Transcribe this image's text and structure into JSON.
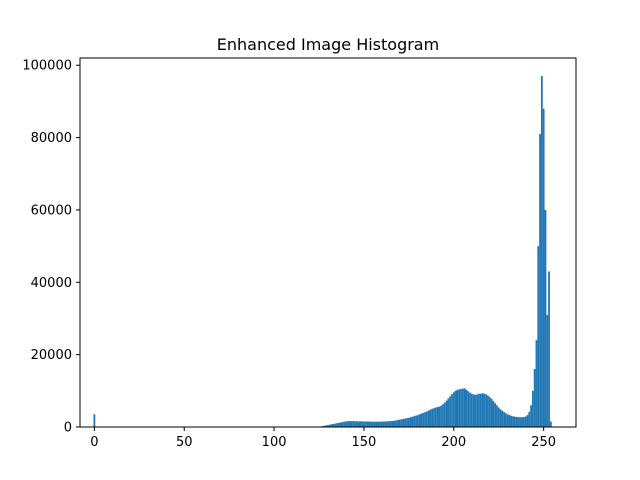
{
  "chart_data": {
    "type": "bar",
    "title": "Enhanced Image Histogram",
    "xlabel": "",
    "ylabel": "",
    "xlim": [
      -8,
      268
    ],
    "ylim": [
      0,
      102000
    ],
    "x_ticks": [
      0,
      50,
      100,
      150,
      200,
      250
    ],
    "y_ticks": [
      0,
      20000,
      40000,
      60000,
      80000,
      100000
    ],
    "grid": false,
    "legend": "none",
    "bar_color": "#1f77b4",
    "bins": [
      {
        "x": 0,
        "value": 3500
      },
      {
        "x": 126,
        "value": 150
      },
      {
        "x": 127,
        "value": 250
      },
      {
        "x": 128,
        "value": 350
      },
      {
        "x": 129,
        "value": 450
      },
      {
        "x": 130,
        "value": 550
      },
      {
        "x": 131,
        "value": 650
      },
      {
        "x": 132,
        "value": 750
      },
      {
        "x": 133,
        "value": 850
      },
      {
        "x": 134,
        "value": 950
      },
      {
        "x": 135,
        "value": 1050
      },
      {
        "x": 136,
        "value": 1150
      },
      {
        "x": 137,
        "value": 1250
      },
      {
        "x": 138,
        "value": 1350
      },
      {
        "x": 139,
        "value": 1450
      },
      {
        "x": 140,
        "value": 1550
      },
      {
        "x": 141,
        "value": 1600
      },
      {
        "x": 142,
        "value": 1650
      },
      {
        "x": 143,
        "value": 1600
      },
      {
        "x": 144,
        "value": 1650
      },
      {
        "x": 145,
        "value": 1600
      },
      {
        "x": 146,
        "value": 1600
      },
      {
        "x": 147,
        "value": 1550
      },
      {
        "x": 148,
        "value": 1600
      },
      {
        "x": 149,
        "value": 1550
      },
      {
        "x": 150,
        "value": 1550
      },
      {
        "x": 151,
        "value": 1500
      },
      {
        "x": 152,
        "value": 1550
      },
      {
        "x": 153,
        "value": 1500
      },
      {
        "x": 154,
        "value": 1500
      },
      {
        "x": 155,
        "value": 1450
      },
      {
        "x": 156,
        "value": 1500
      },
      {
        "x": 157,
        "value": 1450
      },
      {
        "x": 158,
        "value": 1500
      },
      {
        "x": 159,
        "value": 1450
      },
      {
        "x": 160,
        "value": 1500
      },
      {
        "x": 161,
        "value": 1500
      },
      {
        "x": 162,
        "value": 1550
      },
      {
        "x": 163,
        "value": 1550
      },
      {
        "x": 164,
        "value": 1600
      },
      {
        "x": 165,
        "value": 1650
      },
      {
        "x": 166,
        "value": 1700
      },
      {
        "x": 167,
        "value": 1750
      },
      {
        "x": 168,
        "value": 1850
      },
      {
        "x": 169,
        "value": 1950
      },
      {
        "x": 170,
        "value": 2050
      },
      {
        "x": 171,
        "value": 2150
      },
      {
        "x": 172,
        "value": 2250
      },
      {
        "x": 173,
        "value": 2350
      },
      {
        "x": 174,
        "value": 2450
      },
      {
        "x": 175,
        "value": 2550
      },
      {
        "x": 176,
        "value": 2700
      },
      {
        "x": 177,
        "value": 2850
      },
      {
        "x": 178,
        "value": 3000
      },
      {
        "x": 179,
        "value": 3150
      },
      {
        "x": 180,
        "value": 3300
      },
      {
        "x": 181,
        "value": 3500
      },
      {
        "x": 182,
        "value": 3700
      },
      {
        "x": 183,
        "value": 3900
      },
      {
        "x": 184,
        "value": 4100
      },
      {
        "x": 185,
        "value": 4300
      },
      {
        "x": 186,
        "value": 4550
      },
      {
        "x": 187,
        "value": 4800
      },
      {
        "x": 188,
        "value": 5050
      },
      {
        "x": 189,
        "value": 5200
      },
      {
        "x": 190,
        "value": 5400
      },
      {
        "x": 191,
        "value": 5500
      },
      {
        "x": 192,
        "value": 5650
      },
      {
        "x": 193,
        "value": 5900
      },
      {
        "x": 194,
        "value": 6300
      },
      {
        "x": 195,
        "value": 6750
      },
      {
        "x": 196,
        "value": 7300
      },
      {
        "x": 197,
        "value": 7900
      },
      {
        "x": 198,
        "value": 8500
      },
      {
        "x": 199,
        "value": 9100
      },
      {
        "x": 200,
        "value": 9600
      },
      {
        "x": 201,
        "value": 10000
      },
      {
        "x": 202,
        "value": 10300
      },
      {
        "x": 203,
        "value": 10400
      },
      {
        "x": 204,
        "value": 10500
      },
      {
        "x": 205,
        "value": 10600
      },
      {
        "x": 206,
        "value": 10700
      },
      {
        "x": 207,
        "value": 10300
      },
      {
        "x": 208,
        "value": 9900
      },
      {
        "x": 209,
        "value": 9500
      },
      {
        "x": 210,
        "value": 9200
      },
      {
        "x": 211,
        "value": 9000
      },
      {
        "x": 212,
        "value": 8900
      },
      {
        "x": 213,
        "value": 9000
      },
      {
        "x": 214,
        "value": 9200
      },
      {
        "x": 215,
        "value": 9200
      },
      {
        "x": 216,
        "value": 9300
      },
      {
        "x": 217,
        "value": 9200
      },
      {
        "x": 218,
        "value": 9000
      },
      {
        "x": 219,
        "value": 8700
      },
      {
        "x": 220,
        "value": 8300
      },
      {
        "x": 221,
        "value": 7800
      },
      {
        "x": 222,
        "value": 7200
      },
      {
        "x": 223,
        "value": 6600
      },
      {
        "x": 224,
        "value": 6000
      },
      {
        "x": 225,
        "value": 5400
      },
      {
        "x": 226,
        "value": 4900
      },
      {
        "x": 227,
        "value": 4500
      },
      {
        "x": 228,
        "value": 4100
      },
      {
        "x": 229,
        "value": 3800
      },
      {
        "x": 230,
        "value": 3500
      },
      {
        "x": 231,
        "value": 3300
      },
      {
        "x": 232,
        "value": 3100
      },
      {
        "x": 233,
        "value": 2950
      },
      {
        "x": 234,
        "value": 2850
      },
      {
        "x": 235,
        "value": 2800
      },
      {
        "x": 236,
        "value": 2750
      },
      {
        "x": 237,
        "value": 2700
      },
      {
        "x": 238,
        "value": 2700
      },
      {
        "x": 239,
        "value": 2750
      },
      {
        "x": 240,
        "value": 2900
      },
      {
        "x": 241,
        "value": 3300
      },
      {
        "x": 242,
        "value": 4200
      },
      {
        "x": 243,
        "value": 6000
      },
      {
        "x": 244,
        "value": 10000
      },
      {
        "x": 245,
        "value": 16000
      },
      {
        "x": 246,
        "value": 24000
      },
      {
        "x": 247,
        "value": 50000
      },
      {
        "x": 248,
        "value": 81000
      },
      {
        "x": 249,
        "value": 97000
      },
      {
        "x": 250,
        "value": 88000
      },
      {
        "x": 251,
        "value": 60000
      },
      {
        "x": 252,
        "value": 31000
      },
      {
        "x": 253,
        "value": 43000
      },
      {
        "x": 254,
        "value": 1500
      }
    ]
  }
}
